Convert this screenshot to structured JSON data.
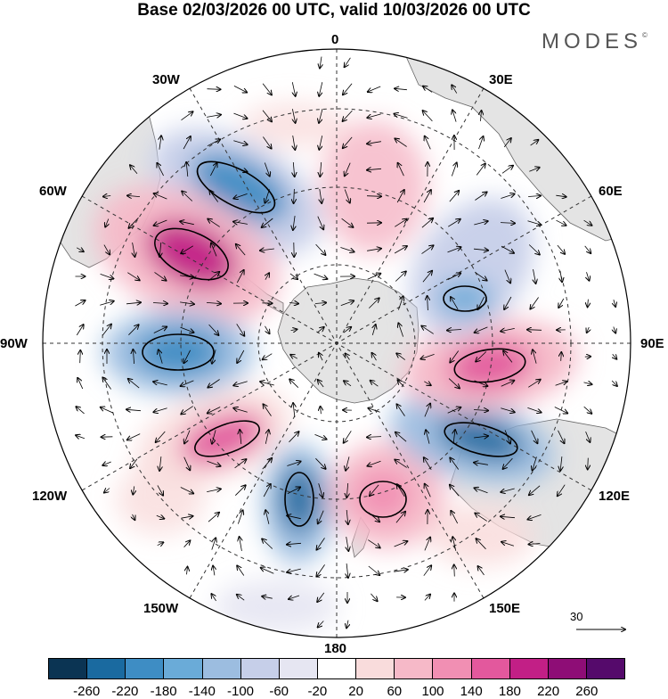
{
  "title": "Base 02/03/2026 00 UTC, valid 10/03/2026 00 UTC",
  "brand": {
    "name": "MODES",
    "mark": "©"
  },
  "meridian_labels": {
    "top": "0",
    "bottom": "180",
    "left_top": "30W",
    "right_top": "30E",
    "left_upper": "60W",
    "right_upper": "60E",
    "left_mid": "90W",
    "right_mid": "90E",
    "left_lower": "120W",
    "right_lower": "120E",
    "left_bottom": "150W",
    "right_bottom": "150E"
  },
  "vector_reference": {
    "value": "30"
  },
  "colorbar": {
    "colors": [
      "#0b3453",
      "#1a6aa0",
      "#3e8dc4",
      "#6aabd8",
      "#9cbde0",
      "#c6cfe9",
      "#e6e6f2",
      "#ffffff",
      "#f9dcdc",
      "#f6b9c8",
      "#f18fb3",
      "#e3589d",
      "#c21f86",
      "#8e0d76",
      "#550a6b"
    ],
    "ticks": [
      "-260",
      "-220",
      "-180",
      "-140",
      "-100",
      "-60",
      "-20",
      "20",
      "60",
      "100",
      "140",
      "180",
      "220",
      "260"
    ]
  },
  "anomaly_centres": [
    {
      "lon": -33,
      "lat": -48,
      "value": -180
    },
    {
      "lon": -55,
      "lat": -44,
      "value": 200
    },
    {
      "lon": -88,
      "lat": -48,
      "value": -190
    },
    {
      "lon": -120,
      "lat": -50,
      "value": 150
    },
    {
      "lon": -160,
      "lat": -47,
      "value": -200
    },
    {
      "lon": 160,
      "lat": -48,
      "value": 120
    },
    {
      "lon": 115,
      "lat": -46,
      "value": -200
    },
    {
      "lon": 90,
      "lat": -45,
      "value": 170
    },
    {
      "lon": 60,
      "lat": -57,
      "value": -120
    },
    {
      "lon": 20,
      "lat": -55,
      "value": 60
    }
  ]
}
